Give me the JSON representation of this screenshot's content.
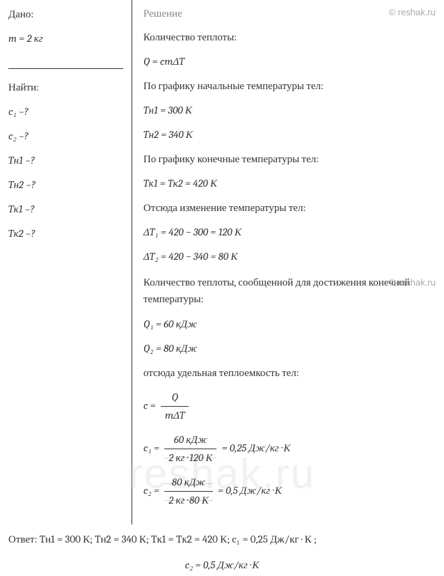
{
  "watermark": "© reshak.ru",
  "watermark_big": "reshak.ru",
  "left": {
    "given_label": "Дано:",
    "mass": "m = 2 кг",
    "find_label": "Найти:",
    "unknowns": [
      "c₁ –?",
      "c₂ –?",
      "Tн1 –?",
      "Tн2 –?",
      "Tк1 –?",
      "Tк2 –?"
    ]
  },
  "right": {
    "solution_label": "Решение",
    "heat_qty_label": "Количество теплоты:",
    "formula_Q": "Q = cmΔT",
    "initial_temps_label": "По графику начальные температуры тел:",
    "T_n1": "Tн1 = 300 К",
    "T_n2": "Tн2 = 340 К",
    "final_temps_label": "По графику конечные температуры тел:",
    "T_k": "Tк1 = Tк2 = 420 К",
    "delta_label": "Отсюда изменение температуры тел:",
    "dT1": "ΔT₁ = 420 − 300 = 120 К",
    "dT2": "ΔT₂ = 420 − 340 = 80 К",
    "heat_given_label": "Количество теплоты, сообщенной для достижения конечной температуры:",
    "Q1": "Q₁ = 60 кДж",
    "Q2": "Q₂ = 80 кДж",
    "specific_heat_label": "отсюда удельная теплоемкость тел:",
    "c_formula_lhs": "c =",
    "c_formula_num": "Q",
    "c_formula_den": "mΔT",
    "c1_lhs": "c₁ =",
    "c1_num": "60 кДж",
    "c1_den": "2 кг · 120 К",
    "c1_rhs": "= 0,25 Дж/кг · К",
    "c2_lhs": "c₂ =",
    "c2_num": "80 кДж",
    "c2_den": "2 кг · 80 К",
    "c2_rhs": "= 0,5 Дж/кг · К"
  },
  "answer": {
    "line1": "Ответ: Tн1 = 300 К;  Tн2 = 340 К;  Tк1 = Tк2 = 420 К;  c₁ = 0,25 Дж/кг · К ;",
    "line2": "c₂ = 0,5 Дж/кг · К"
  }
}
